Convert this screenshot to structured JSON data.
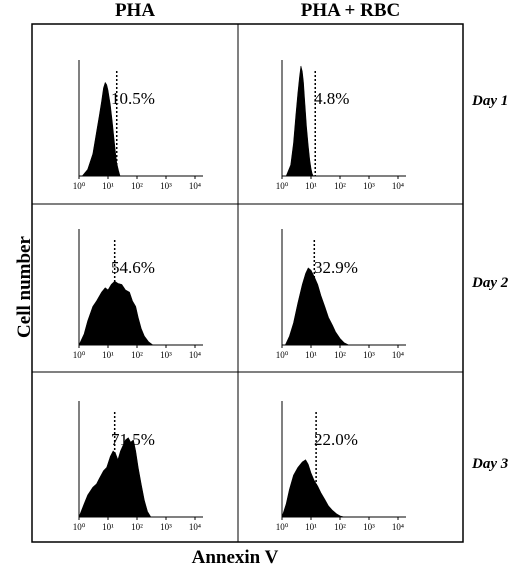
{
  "figure": {
    "columns": [
      "PHA",
      "PHA + RBC"
    ],
    "rows": [
      "Day 1",
      "Day 2",
      "Day 3"
    ],
    "ylabel": "Cell number",
    "xlabel": "Annexin V"
  },
  "chart_data": [
    {
      "type": "area",
      "column": "PHA",
      "row": "Day 1",
      "percent_label": "10.5%",
      "x_scale": "log",
      "xlim": [
        1,
        10000
      ],
      "x_ticks": [
        "10⁰",
        "10¹",
        "10²",
        "10³",
        "10⁴"
      ],
      "gate_x": 20,
      "x": [
        1.3,
        2,
        3,
        4,
        5,
        6,
        7,
        8,
        9,
        10,
        12,
        14,
        16,
        18,
        20,
        23,
        26
      ],
      "y": [
        0,
        0.06,
        0.2,
        0.4,
        0.55,
        0.68,
        0.8,
        0.85,
        0.83,
        0.78,
        0.65,
        0.5,
        0.35,
        0.22,
        0.12,
        0.05,
        0
      ]
    },
    {
      "type": "area",
      "column": "PHA + RBC",
      "row": "Day 1",
      "percent_label": "4.8%",
      "x_scale": "log",
      "xlim": [
        1,
        10000
      ],
      "x_ticks": [
        "10⁰",
        "10¹",
        "10²",
        "10³",
        "10⁴"
      ],
      "gate_x": 14,
      "x": [
        1.4,
        2,
        2.5,
        3,
        3.5,
        4,
        4.5,
        5,
        5.5,
        6,
        7,
        8,
        9,
        10,
        11,
        12
      ],
      "y": [
        0,
        0.1,
        0.3,
        0.55,
        0.75,
        0.9,
        1.0,
        0.95,
        0.85,
        0.7,
        0.45,
        0.28,
        0.15,
        0.07,
        0.02,
        0
      ]
    },
    {
      "type": "area",
      "column": "PHA",
      "row": "Day 2",
      "percent_label": "54.6%",
      "x_scale": "log",
      "xlim": [
        1,
        10000
      ],
      "x_ticks": [
        "10⁰",
        "10¹",
        "10²",
        "10³",
        "10⁴"
      ],
      "gate_x": 17,
      "x": [
        1,
        1.5,
        2,
        3,
        4,
        6,
        8,
        10,
        13,
        17,
        22,
        30,
        40,
        55,
        70,
        90,
        110,
        140,
        180,
        250,
        350
      ],
      "y": [
        0,
        0.1,
        0.22,
        0.35,
        0.4,
        0.48,
        0.52,
        0.5,
        0.55,
        0.58,
        0.56,
        0.55,
        0.5,
        0.48,
        0.4,
        0.35,
        0.25,
        0.15,
        0.08,
        0.03,
        0
      ]
    },
    {
      "type": "area",
      "column": "PHA + RBC",
      "row": "Day 2",
      "percent_label": "32.9%",
      "x_scale": "log",
      "xlim": [
        1,
        10000
      ],
      "x_ticks": [
        "10⁰",
        "10¹",
        "10²",
        "10³",
        "10⁴"
      ],
      "gate_x": 13,
      "x": [
        1.3,
        1.8,
        2.5,
        3.5,
        5,
        6.5,
        8,
        10,
        13,
        17,
        22,
        30,
        40,
        55,
        70,
        100,
        140,
        200
      ],
      "y": [
        0,
        0.08,
        0.2,
        0.38,
        0.55,
        0.65,
        0.7,
        0.68,
        0.62,
        0.55,
        0.45,
        0.35,
        0.25,
        0.18,
        0.12,
        0.06,
        0.02,
        0
      ]
    },
    {
      "type": "area",
      "column": "PHA",
      "row": "Day 3",
      "percent_label": "71.5%",
      "x_scale": "log",
      "xlim": [
        1,
        10000
      ],
      "x_ticks": [
        "10⁰",
        "10¹",
        "10²",
        "10³",
        "10⁴"
      ],
      "gate_x": 17,
      "x": [
        1,
        1.5,
        2,
        3,
        4,
        5,
        7,
        9,
        12,
        15,
        18,
        22,
        27,
        33,
        40,
        50,
        60,
        75,
        90,
        110,
        140,
        180,
        230,
        300
      ],
      "y": [
        0,
        0.12,
        0.2,
        0.27,
        0.3,
        0.35,
        0.42,
        0.45,
        0.55,
        0.6,
        0.58,
        0.52,
        0.6,
        0.65,
        0.7,
        0.72,
        0.68,
        0.7,
        0.6,
        0.45,
        0.3,
        0.15,
        0.05,
        0
      ]
    },
    {
      "type": "area",
      "column": "PHA + RBC",
      "row": "Day 3",
      "percent_label": "22.0%",
      "x_scale": "log",
      "xlim": [
        1,
        10000
      ],
      "x_ticks": [
        "10⁰",
        "10¹",
        "10²",
        "10³",
        "10⁴"
      ],
      "gate_x": 15,
      "x": [
        1,
        1.4,
        1.8,
        2.5,
        3.5,
        5,
        6.5,
        8,
        10,
        13,
        17,
        22,
        30,
        40,
        55,
        75,
        100,
        140
      ],
      "y": [
        0,
        0.12,
        0.25,
        0.38,
        0.45,
        0.5,
        0.52,
        0.48,
        0.4,
        0.33,
        0.28,
        0.22,
        0.16,
        0.1,
        0.06,
        0.03,
        0.01,
        0
      ]
    }
  ]
}
